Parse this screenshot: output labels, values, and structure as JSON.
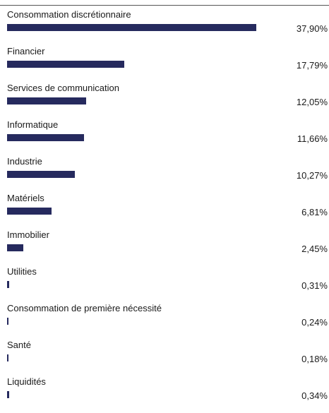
{
  "chart_data": {
    "type": "bar",
    "orientation": "horizontal",
    "categories": [
      "Consommation discrétionnaire",
      "Financier",
      "Services de communication",
      "Informatique",
      "Industrie",
      "Matériels",
      "Immobilier",
      "Utilities",
      "Consommation de première nécessité",
      "Santé",
      "Liquidités"
    ],
    "values": [
      37.9,
      17.79,
      12.05,
      11.66,
      10.27,
      6.81,
      2.45,
      0.31,
      0.24,
      0.18,
      0.34
    ],
    "value_labels": [
      "37,90%",
      "17,79%",
      "12,05%",
      "11,66%",
      "10,27%",
      "6,81%",
      "2,45%",
      "0,31%",
      "0,24%",
      "0,18%",
      "0,34%"
    ],
    "unit": "%",
    "title": "",
    "xlabel": "",
    "ylabel": "",
    "xlim": [
      0,
      40
    ],
    "grid": false,
    "legend": "none",
    "bar_color": "#262a5e"
  }
}
